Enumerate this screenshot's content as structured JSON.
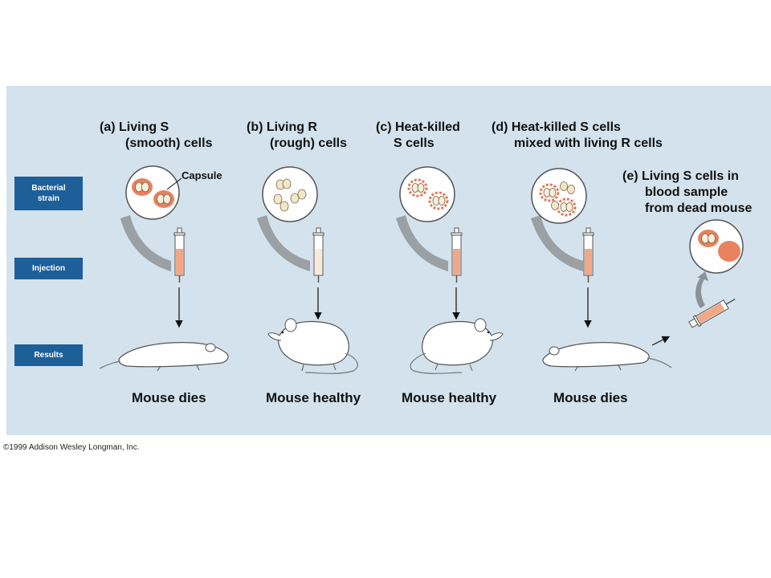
{
  "row_labels": {
    "bacterial_strain": [
      "Bacterial",
      "strain"
    ],
    "injection": "Injection",
    "results": "Results"
  },
  "panels": [
    {
      "title_line1": "(a) Living S",
      "title_line2": "(smooth) cells",
      "result": "Mouse dies"
    },
    {
      "title_line1": "(b) Living R",
      "title_line2": "(rough) cells",
      "result": "Mouse healthy"
    },
    {
      "title_line1": "(c) Heat-killed",
      "title_line2": "S cells",
      "result": "Mouse healthy"
    },
    {
      "title_line1": "(d) Heat-killed S cells",
      "title_line2": "mixed with living R cells",
      "result": "Mouse dies"
    },
    {
      "title_line1": "(e) Living S cells in",
      "title_line2": "blood sample",
      "title_line3": "from dead mouse"
    }
  ],
  "capsule_label": "Capsule",
  "copyright": "©1999 Addison Wesley Longman, Inc.",
  "colors": {
    "background_panel": "#d3e2ec",
    "row_label_bg": "#1d5f99",
    "s_cell": "#e8825f",
    "r_cell": "#f0e8c8",
    "syringe_fill_s": "#f2a888"
  }
}
